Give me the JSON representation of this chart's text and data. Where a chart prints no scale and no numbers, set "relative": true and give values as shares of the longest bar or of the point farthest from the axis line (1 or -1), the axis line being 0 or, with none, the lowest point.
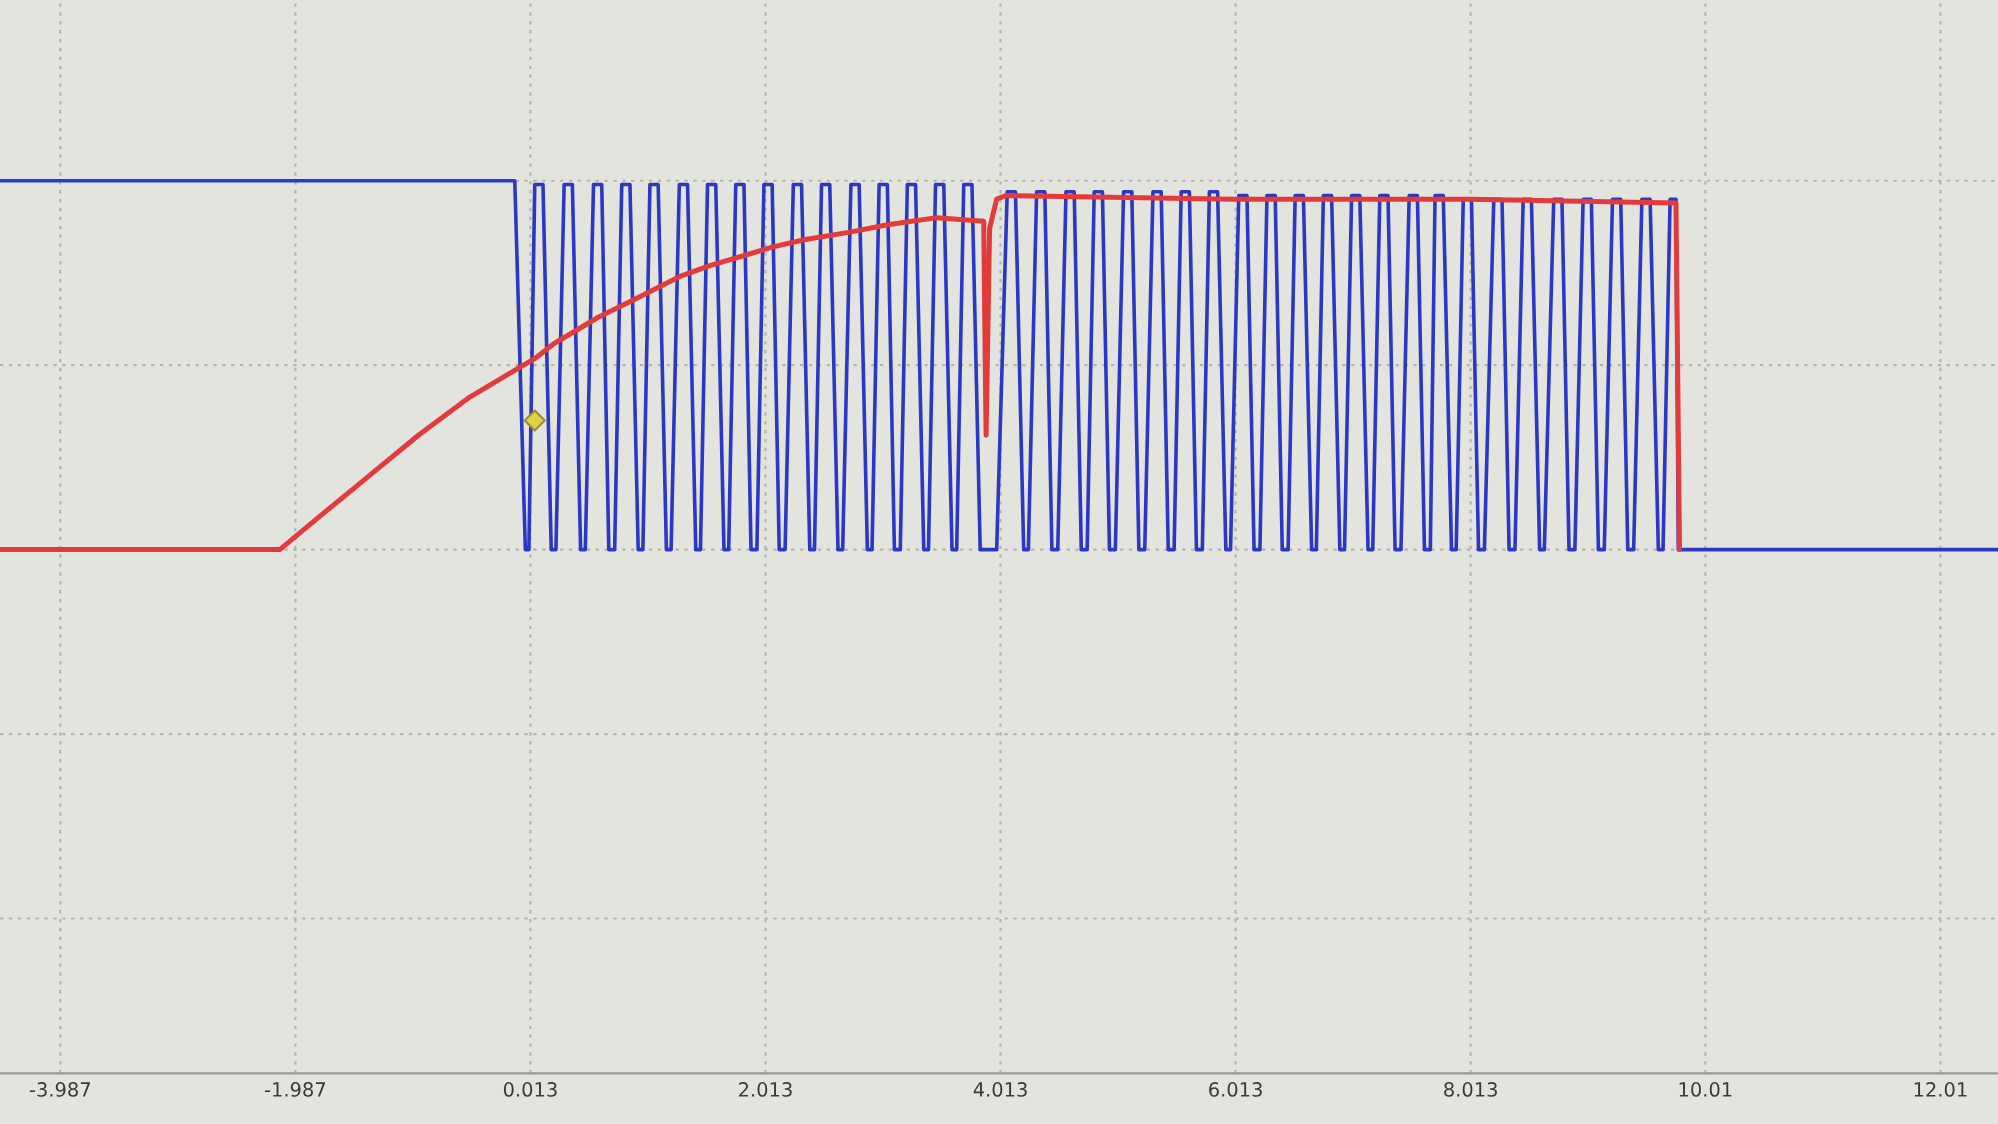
{
  "chart_data": {
    "type": "line",
    "relative": true,
    "xlim": [
      -4.5,
      12.5
    ],
    "xticks": [
      -3.987,
      -1.987,
      0.013,
      2.013,
      4.013,
      6.013,
      8.013,
      10.01,
      12.01
    ],
    "grid": true,
    "tick_labels": "x",
    "line_style": "solid",
    "series": [
      {
        "color": "#2b38c4",
        "x": [
          -4.5,
          -0.12,
          -0.03,
          0.0,
          0.05,
          0.12,
          0.19,
          0.23,
          0.3,
          0.37,
          0.44,
          0.48,
          0.55,
          0.62,
          0.68,
          0.73,
          0.79,
          0.86,
          0.93,
          0.97,
          1.03,
          1.1,
          1.17,
          1.21,
          1.28,
          1.35,
          1.42,
          1.46,
          1.52,
          1.59,
          1.66,
          1.7,
          1.76,
          1.83,
          1.89,
          1.94,
          2.0,
          2.07,
          2.13,
          2.18,
          2.25,
          2.32,
          2.39,
          2.43,
          2.49,
          2.56,
          2.63,
          2.67,
          2.74,
          2.81,
          2.88,
          2.92,
          2.98,
          3.05,
          3.11,
          3.16,
          3.22,
          3.29,
          3.36,
          3.4,
          3.46,
          3.53,
          3.6,
          3.64,
          3.7,
          3.77,
          3.84,
          3.98,
          4.07,
          4.14,
          4.21,
          4.25,
          4.32,
          4.39,
          4.45,
          4.5,
          4.57,
          4.64,
          4.7,
          4.75,
          4.81,
          4.88,
          4.94,
          4.99,
          5.06,
          5.13,
          5.19,
          5.24,
          5.31,
          5.38,
          5.44,
          5.49,
          5.55,
          5.62,
          5.68,
          5.73,
          5.79,
          5.86,
          5.93,
          5.97,
          6.04,
          6.11,
          6.17,
          6.22,
          6.28,
          6.35,
          6.41,
          6.46,
          6.52,
          6.59,
          6.66,
          6.7,
          6.76,
          6.83,
          6.9,
          6.94,
          7.0,
          7.07,
          7.14,
          7.18,
          7.24,
          7.31,
          7.37,
          7.42,
          7.49,
          7.56,
          7.62,
          7.67,
          7.71,
          7.78,
          7.85,
          7.89,
          7.95,
          8.02,
          8.08,
          8.13,
          8.21,
          8.28,
          8.34,
          8.39,
          8.46,
          8.53,
          8.6,
          8.64,
          8.72,
          8.79,
          8.85,
          8.9,
          8.97,
          9.04,
          9.1,
          9.15,
          9.22,
          9.29,
          9.35,
          9.4,
          9.47,
          9.54,
          9.61,
          9.65,
          9.71,
          9.76,
          9.78,
          12.5
        ],
        "values": [
          1.0,
          1.0,
          0,
          0,
          0.99,
          0.99,
          0,
          0,
          0.99,
          0.99,
          0,
          0,
          0.99,
          0.99,
          0,
          0,
          0.99,
          0.99,
          0,
          0,
          0.99,
          0.99,
          0,
          0,
          0.99,
          0.99,
          0,
          0,
          0.99,
          0.99,
          0,
          0,
          0.99,
          0.99,
          0,
          0,
          0.99,
          0.99,
          0,
          0,
          0.99,
          0.99,
          0,
          0,
          0.99,
          0.99,
          0,
          0,
          0.99,
          0.99,
          0,
          0,
          0.99,
          0.99,
          0,
          0,
          0.99,
          0.99,
          0,
          0,
          0.99,
          0.99,
          0,
          0,
          0.99,
          0.99,
          0,
          0,
          0.97,
          0.97,
          0,
          0,
          0.97,
          0.97,
          0,
          0,
          0.97,
          0.97,
          0,
          0,
          0.97,
          0.97,
          0,
          0,
          0.97,
          0.97,
          0,
          0,
          0.97,
          0.97,
          0,
          0,
          0.97,
          0.97,
          0,
          0,
          0.97,
          0.97,
          0,
          0,
          0.96,
          0.96,
          0,
          0,
          0.96,
          0.96,
          0,
          0,
          0.96,
          0.96,
          0,
          0,
          0.96,
          0.96,
          0,
          0,
          0.96,
          0.96,
          0,
          0,
          0.96,
          0.96,
          0,
          0,
          0.96,
          0.96,
          0,
          0,
          0.96,
          0.96,
          0,
          0,
          0.95,
          0.95,
          0,
          0,
          0.95,
          0.95,
          0,
          0,
          0.95,
          0.95,
          0,
          0,
          0.95,
          0.95,
          0,
          0,
          0.95,
          0.95,
          0,
          0,
          0.95,
          0.95,
          0,
          0,
          0.95,
          0.95,
          0,
          0,
          0.95,
          0.95,
          0,
          0
        ]
      },
      {
        "color": "#e23b3b",
        "x": [
          -4.5,
          -2.12,
          -1.78,
          -1.36,
          -0.94,
          -0.52,
          -0.1,
          0.06,
          0.22,
          0.38,
          0.59,
          0.91,
          1.28,
          1.54,
          1.86,
          2.07,
          2.34,
          2.72,
          3.04,
          3.47,
          3.87,
          3.89,
          3.92,
          3.98,
          4.06,
          6.0,
          8.0,
          9.76,
          9.79
        ],
        "values": [
          0,
          0,
          0.09,
          0.2,
          0.31,
          0.41,
          0.49,
          0.52,
          0.56,
          0.59,
          0.63,
          0.68,
          0.74,
          0.77,
          0.8,
          0.82,
          0.84,
          0.86,
          0.88,
          0.9,
          0.89,
          0.31,
          0.87,
          0.95,
          0.96,
          0.95,
          0.95,
          0.94,
          0
        ]
      },
      {
        "type": "scatter",
        "color": "#ddd24a",
        "marker": "diamond",
        "x": [
          0.05
        ],
        "values": [
          0.35
        ]
      }
    ]
  }
}
